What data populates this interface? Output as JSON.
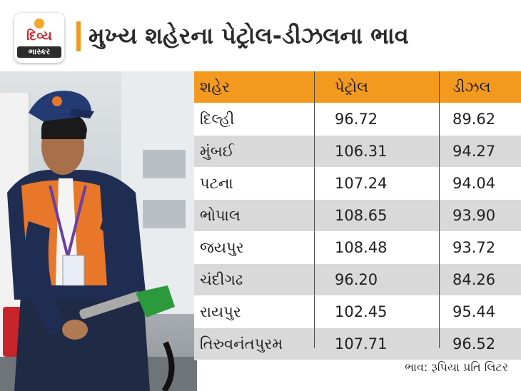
{
  "header": {
    "logo_line1": "દિવ્ય",
    "logo_line2": "ભાસ્કર",
    "title": "મુખ્ય શહેરના પેટ્રોલ-ડીઝલના ભાવ"
  },
  "colors": {
    "accent": "#f39a1e",
    "row_shade": "#d9d9d9"
  },
  "table": {
    "headers": [
      "શહેર",
      "પેટ્રોલ",
      "ડીઝલ"
    ],
    "rows": [
      [
        "દિલ્હી",
        "96.72",
        "89.62"
      ],
      [
        "મુંબઈ",
        "106.31",
        "94.27"
      ],
      [
        "પટના",
        "107.24",
        "94.04"
      ],
      [
        "ભોપાલ",
        "108.65",
        "93.90"
      ],
      [
        "જયપુર",
        "108.48",
        "93.72"
      ],
      [
        "ચંદીગઢ",
        "96.20",
        "84.26"
      ],
      [
        "રાયપુર",
        "102.45",
        "95.44"
      ],
      [
        "તિરુવનંતપુરમ",
        "107.71",
        "96.52"
      ]
    ]
  },
  "footnote": "ભાવ: રૂપિયા પ્રતિ લિટર"
}
